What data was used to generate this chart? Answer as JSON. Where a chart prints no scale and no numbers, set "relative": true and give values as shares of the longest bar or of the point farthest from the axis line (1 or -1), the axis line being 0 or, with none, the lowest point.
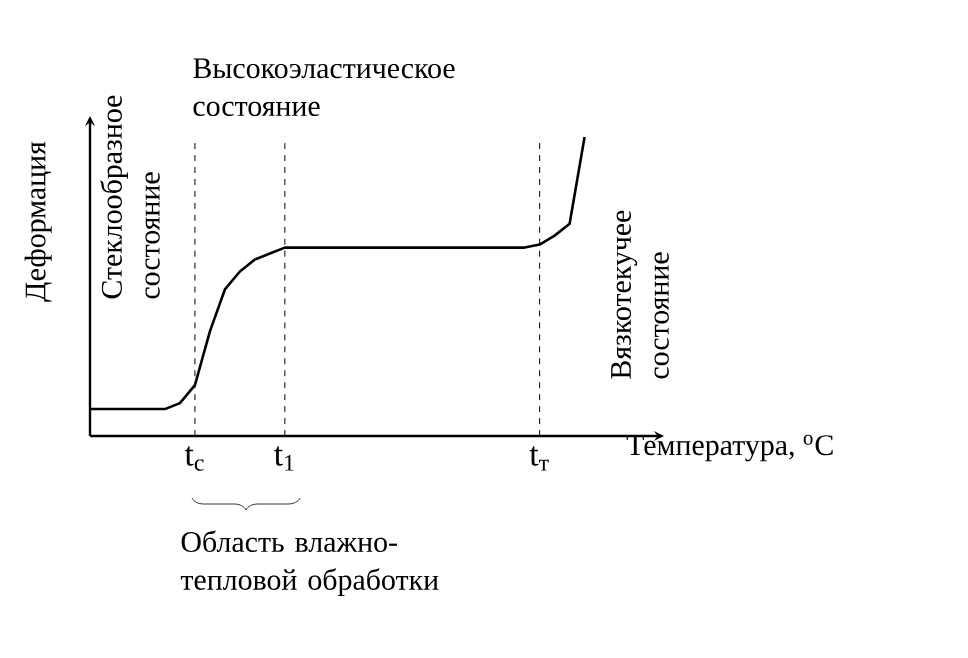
{
  "chart_data": {
    "type": "line",
    "relative": true,
    "xlabel": "Температура, $^{o}$C",
    "ylabel": "Деформация",
    "categories": [
      null,
      null,
      null,
      null,
      null,
      null,
      null,
      "t$_{c}$",
      null,
      null,
      null,
      null,
      null,
      "t$_{1}$",
      null,
      null,
      null,
      null,
      null,
      null,
      null,
      null,
      null,
      null,
      null,
      null,
      null,
      null,
      null,
      null,
      "t$_{т}$",
      null,
      null,
      null
    ],
    "values": [
      0.09,
      0.09,
      0.09,
      0.09,
      0.09,
      0.09,
      0.11,
      0.17,
      0.35,
      0.49,
      0.55,
      0.59,
      0.61,
      0.63,
      0.63,
      0.63,
      0.63,
      0.63,
      0.63,
      0.63,
      0.63,
      0.63,
      0.63,
      0.63,
      0.63,
      0.63,
      0.63,
      0.63,
      0.63,
      0.63,
      0.64,
      0.67,
      0.71,
      1
    ],
    "color": "#000000",
    "marker": "none",
    "line_style": "solid",
    "ref_lines": [
      {
        "axis": "x",
        "value": "t$_{c}$",
        "line_style": "dashed"
      },
      {
        "axis": "x",
        "value": "t$_{1}$",
        "line_style": "dashed"
      },
      {
        "axis": "x",
        "value": "t$_{т}$",
        "line_style": "dashed"
      }
    ],
    "annotations": [
      "Стеклообразное состояние",
      "Высокоэластическое состояние",
      "Вязкотекучее состояние",
      "Область влажно-тепловой обработки"
    ]
  }
}
